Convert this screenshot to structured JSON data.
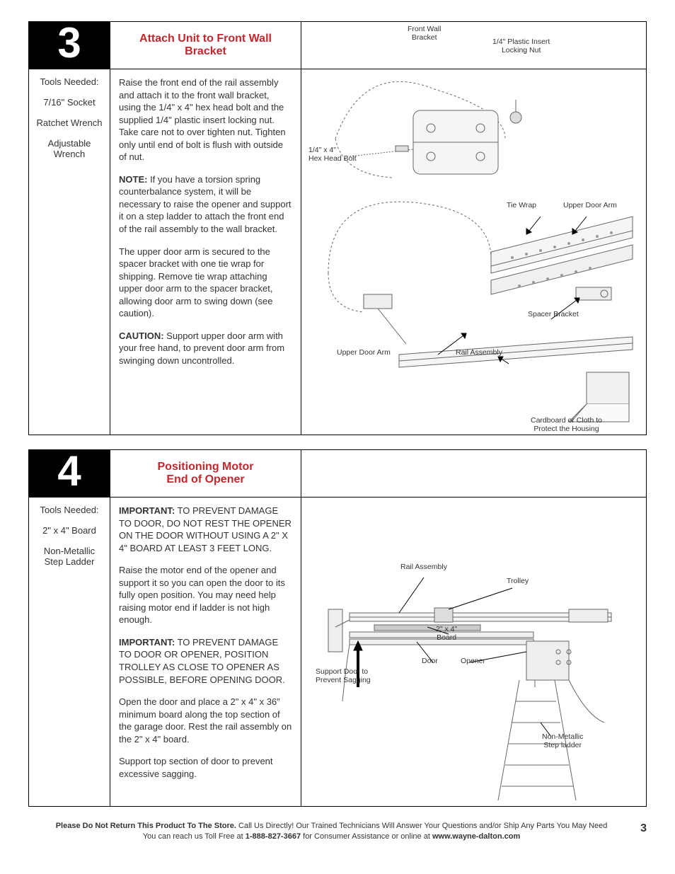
{
  "sections": [
    {
      "step_number": "3",
      "title": "Attach Unit to Front Wall Bracket",
      "title_color": "#c1272d",
      "tools_heading": "Tools Needed:",
      "tools": [
        "7/16\" Socket",
        "Ratchet Wrench",
        "Adjustable Wrench"
      ],
      "paragraphs": [
        {
          "prefix": "",
          "text": "Raise the front end of the rail assembly and attach it to the front wall bracket, using the 1/4\" x 4\" hex head bolt and the supplied 1/4\" plastic insert locking nut. Take care not to over tighten nut. Tighten only until end of bolt is flush with outside of nut."
        },
        {
          "prefix": "NOTE:",
          "text": " If you have a torsion spring counterbalance system, it will be necessary to raise the opener and support it on a step ladder to attach the front end of the rail assembly to the wall bracket."
        },
        {
          "prefix": "",
          "text": "The upper door arm is secured to the spacer bracket with one tie wrap for shipping. Remove tie wrap attaching upper door arm to the spacer bracket, allowing door arm to swing down (see caution)."
        },
        {
          "prefix": "CAUTION:",
          "text": " Support upper door arm with your free hand, to prevent door arm from swinging down uncontrolled."
        }
      ],
      "diagram_labels": {
        "front_wall_bracket": "Front Wall\nBracket",
        "plastic_insert": "1/4\" Plastic Insert\nLocking Nut",
        "hex_head_bolt": "1/4\" x 4\"\nHex Head Bolt",
        "tie_wrap": "Tie Wrap",
        "upper_door_arm_top": "Upper Door Arm",
        "upper_door_arm_left": "Upper Door Arm",
        "rail_assembly": "Rail Assembly",
        "spacer_bracket": "Spacer Bracket",
        "cardboard": "Cardboard or Cloth to\nProtect the Housing"
      }
    },
    {
      "step_number": "4",
      "title": "Positioning Motor\nEnd of Opener",
      "title_color": "#c1272d",
      "tools_heading": "Tools Needed:",
      "tools": [
        "2\" x 4\" Board",
        "Non-Metallic Step Ladder"
      ],
      "paragraphs": [
        {
          "prefix": "IMPORTANT:",
          "text": " TO PREVENT DAMAGE TO DOOR, DO NOT REST THE OPENER ON THE DOOR WITHOUT USING A 2\" X 4\" BOARD AT LEAST 3 FEET LONG."
        },
        {
          "prefix": "",
          "text": "Raise the motor end of the opener and support it so you can open the door to its fully open position. You may need help raising motor end if ladder is not high enough."
        },
        {
          "prefix": "IMPORTANT:",
          "text": " TO PREVENT DAMAGE TO DOOR OR OPENER, POSITION TROLLEY AS CLOSE TO OPENER AS POSSIBLE, BEFORE OPENING DOOR."
        },
        {
          "prefix": "",
          "text": "Open the door and place a 2\" x 4\" x 36\" minimum board along the top section of the garage door. Rest the rail assembly on the 2\" x 4\" board."
        },
        {
          "prefix": "",
          "text": "Support top section of door to prevent excessive sagging."
        }
      ],
      "diagram_labels": {
        "rail_assembly": "Rail Assembly",
        "trolley": "Trolley",
        "board": "2\" x 4\"\nBoard",
        "door": "Door",
        "opener": "Opener",
        "support_door": "Support Door to\nPrevent Sagging",
        "step_ladder": "Non-Metallic\nStep ladder"
      }
    }
  ],
  "footer": {
    "line1_bold": "Please Do Not Return This Product To The Store.",
    "line1_rest": " Call Us Directly! Our Trained Technicians Will Answer Your Questions and/or Ship Any Parts You May Need",
    "line2_a": "You can reach us Toll Free at ",
    "line2_phone": "1-888-827-3667",
    "line2_b": " for Consumer Assistance or online at ",
    "line2_url": "www.wayne-dalton.com",
    "page_number": "3"
  },
  "colors": {
    "red": "#c1272d",
    "black": "#000000",
    "gray_line": "#888888"
  }
}
